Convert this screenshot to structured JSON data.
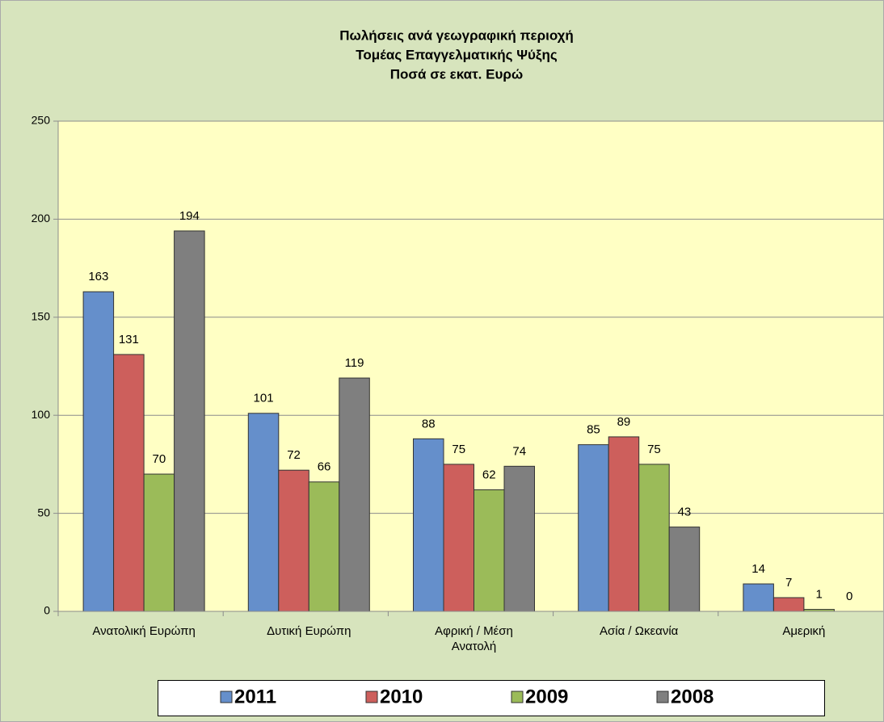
{
  "chart_data": {
    "type": "bar",
    "title": [
      "Πωλήσεις ανά γεωγραφική περιοχή",
      "Τομέας Επαγγελματικής Ψύξης",
      "Ποσά σε εκατ. Ευρώ"
    ],
    "categories": [
      "Ανατολική Ευρώπη",
      "Δυτική Ευρώπη",
      "Αφρική / Μέση Ανατολή",
      "Ασία / Ωκεανία",
      "Αμερική"
    ],
    "series": [
      {
        "name": "2011",
        "color": "#658fcb",
        "values": [
          163,
          101,
          88,
          85,
          14
        ]
      },
      {
        "name": "2010",
        "color": "#cd5f5c",
        "values": [
          131,
          72,
          75,
          89,
          7
        ]
      },
      {
        "name": "2009",
        "color": "#9bbb59",
        "values": [
          70,
          66,
          62,
          75,
          1
        ]
      },
      {
        "name": "2008",
        "color": "#7f7f7f",
        "values": [
          194,
          119,
          74,
          43,
          0
        ]
      }
    ],
    "ylim": [
      0,
      250
    ],
    "yticks": [
      0,
      50,
      100,
      150,
      200,
      250
    ],
    "grid": true,
    "legend": "bottom"
  }
}
